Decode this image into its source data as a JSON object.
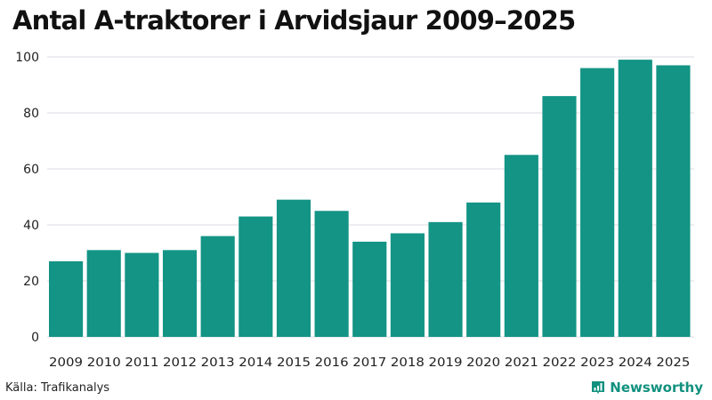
{
  "title": "Antal A-traktorer i Arvidsjaur 2009–2025",
  "source": "Källa: Trafikanalys",
  "brand": {
    "name": "Newsworthy",
    "icon": "bar-chart-speech-bubble-icon",
    "color": "#12917f"
  },
  "colors": {
    "bar": "#139485",
    "grid": "#e3e3ea",
    "text": "#111111"
  },
  "chart_data": {
    "type": "bar",
    "title": "Antal A-traktorer i Arvidsjaur 2009–2025",
    "xlabel": "",
    "ylabel": "",
    "categories": [
      "2009",
      "2010",
      "2011",
      "2012",
      "2013",
      "2014",
      "2015",
      "2016",
      "2017",
      "2018",
      "2019",
      "2020",
      "2021",
      "2022",
      "2023",
      "2024",
      "2025"
    ],
    "values": [
      27,
      31,
      30,
      31,
      36,
      43,
      49,
      45,
      34,
      37,
      41,
      48,
      65,
      86,
      96,
      99,
      97
    ],
    "ylim": [
      0,
      100
    ],
    "yticks": [
      0,
      20,
      40,
      60,
      80,
      100
    ],
    "grid": true,
    "legend": null
  }
}
